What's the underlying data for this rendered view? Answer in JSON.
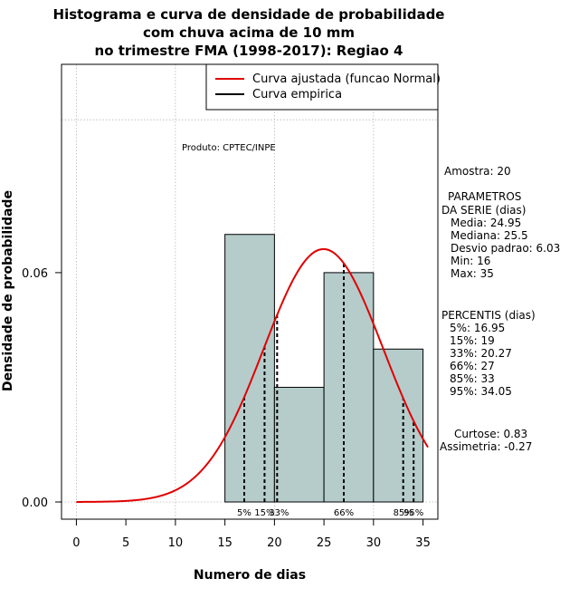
{
  "chart_data": {
    "type": "bar",
    "title_lines": [
      "Histograma e curva de densidade de probabilidade",
      "com chuva acima de 10 mm",
      "no trimestre FMA (1998-2017): Regiao 4"
    ],
    "xlabel": "Numero de dias",
    "ylabel": "Densidade de probabilidade",
    "xlim": [
      -1.5,
      36.5
    ],
    "ylim": [
      -0.0045,
      0.1145
    ],
    "x_ticks": [
      0,
      5,
      10,
      15,
      20,
      25,
      30,
      35
    ],
    "y_ticks": [
      0.0,
      0.06
    ],
    "y_tick_labels": [
      "0.00",
      "0.06"
    ],
    "grid_x": [
      0,
      10,
      20,
      30
    ],
    "grid_y": [
      0.0,
      0.1
    ],
    "bins": [
      {
        "from": 15,
        "to": 20,
        "density": 0.07
      },
      {
        "from": 20,
        "to": 25,
        "density": 0.03
      },
      {
        "from": 25,
        "to": 30,
        "density": 0.06
      },
      {
        "from": 30,
        "to": 35,
        "density": 0.04
      }
    ],
    "normal_fit": {
      "mean": 24.95,
      "sd": 6.03,
      "x_from": 0,
      "x_to": 35.5
    },
    "percentile_lines": [
      {
        "label": "5%",
        "x": 16.95
      },
      {
        "label": "15%",
        "x": 19
      },
      {
        "label": "33%",
        "x": 20.27
      },
      {
        "label": "66%",
        "x": 27
      },
      {
        "label": "85%",
        "x": 33
      },
      {
        "label": "95%",
        "x": 34.05
      }
    ],
    "legend": {
      "position": "top-right",
      "entries": [
        {
          "label": "Curva ajustada (funcao Normal)",
          "color": "#e00000"
        },
        {
          "label": "Curva empirica",
          "color": "#000000"
        }
      ]
    },
    "annotation": "Produto: CPTEC/INPE",
    "colors": {
      "bar_fill": "#b5cccb",
      "bar_stroke": "#000000",
      "curve": "#e00000",
      "grid": "#b8b8b8"
    }
  },
  "side_panel": {
    "amostra": "Amostra: 20",
    "param_title_1": "PARAMETROS",
    "param_title_2": "DA SERIE (dias)",
    "params": [
      "Media: 24.95",
      "Mediana: 25.5",
      "Desvio padrao: 6.03",
      "Min: 16",
      "Max: 35"
    ],
    "pct_title": "PERCENTIS (dias)",
    "percentis": [
      "5%: 16.95",
      "15%: 19",
      "33%: 20.27",
      "66%: 27",
      "85%: 33",
      "95%: 34.05"
    ],
    "curtose": "Curtose: 0.83",
    "assimetria": "Assimetria: -0.27"
  }
}
